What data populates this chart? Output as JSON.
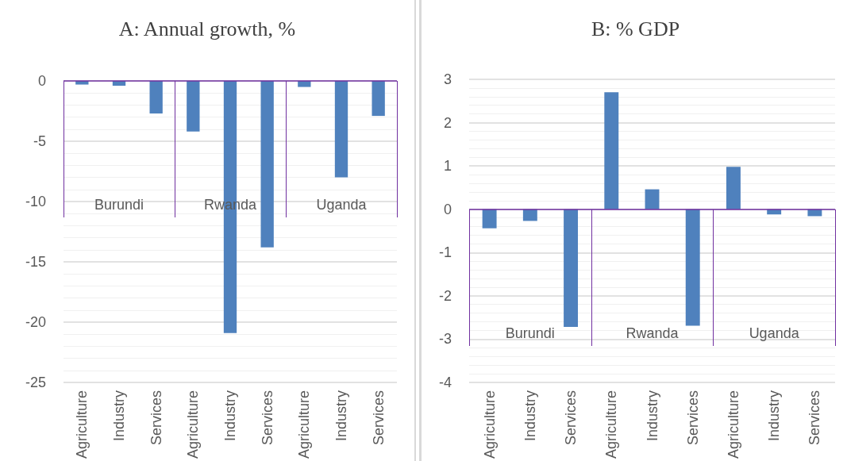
{
  "chart_data": [
    {
      "type": "bar",
      "title": "A: Annual growth, %",
      "categories": [
        "Agriculture",
        "Industry",
        "Services",
        "Agriculture",
        "Industry",
        "Services",
        "Agriculture",
        "Industry",
        "Services"
      ],
      "values": [
        -0.3,
        -0.4,
        -2.7,
        -4.2,
        -20.9,
        -13.8,
        -0.5,
        -8.0,
        -2.9
      ],
      "color": "#4f81bd",
      "annotations": [
        "Burundi",
        "Rwanda",
        "Uganda"
      ],
      "ref_lines": [
        {
          "axis": "y",
          "value": 0,
          "color": "#7030a0"
        }
      ],
      "ylim": [
        -25,
        0
      ],
      "yticks": [
        -25,
        -20,
        -15,
        -10,
        -5,
        0
      ],
      "grid": true
    },
    {
      "type": "bar",
      "title": "B: % GDP",
      "categories": [
        "Agriculture",
        "Industry",
        "Services",
        "Agriculture",
        "Industry",
        "Services",
        "Agriculture",
        "Industry",
        "Services"
      ],
      "values": [
        -0.44,
        -0.27,
        -2.72,
        2.7,
        0.46,
        -2.69,
        0.98,
        -0.12,
        -0.16
      ],
      "color": "#4f81bd",
      "annotations": [
        "Burundi",
        "Rwanda",
        "Uganda"
      ],
      "ref_lines": [
        {
          "axis": "y",
          "value": 0,
          "color": "#7030a0"
        }
      ],
      "ylim": [
        -4,
        3
      ],
      "yticks": [
        -4,
        -3,
        -2,
        -1,
        0,
        1,
        2,
        3
      ],
      "grid": true
    }
  ]
}
